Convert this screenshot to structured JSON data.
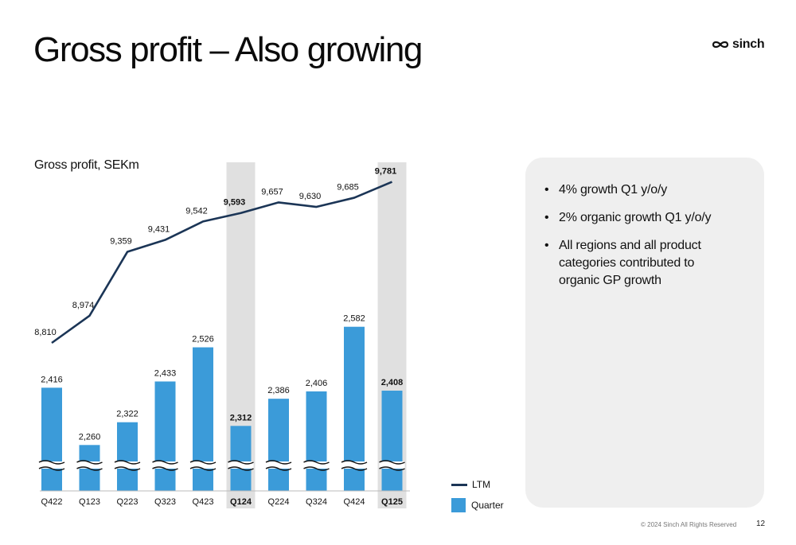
{
  "slide": {
    "title": "Gross profit – Also growing",
    "logo_text": "sinch",
    "footer": "© 2024 Sinch All Rights Reserved",
    "page_number": "12"
  },
  "chart_data": {
    "type": "bar+line",
    "title": "Gross profit, SEKm",
    "categories": [
      "Q422",
      "Q123",
      "Q223",
      "Q323",
      "Q423",
      "Q124",
      "Q224",
      "Q324",
      "Q424",
      "Q125"
    ],
    "highlighted_categories": [
      "Q124",
      "Q125"
    ],
    "axis_break": true,
    "series": [
      {
        "name": "Quarter",
        "type": "bar",
        "color": "#3b9bd9",
        "values": [
          2416,
          2260,
          2322,
          2433,
          2526,
          2312,
          2386,
          2406,
          2582,
          2408
        ],
        "labels": [
          "2,416",
          "2,260",
          "2,322",
          "2,433",
          "2,526",
          "2,312",
          "2,386",
          "2,406",
          "2,582",
          "2,408"
        ]
      },
      {
        "name": "LTM",
        "type": "line",
        "color": "#1b3556",
        "values": [
          8810,
          8974,
          9359,
          9431,
          9542,
          9593,
          9657,
          9630,
          9685,
          9781
        ],
        "labels": [
          "8,810",
          "8,974",
          "9,359",
          "9,431",
          "9,542",
          "9,593",
          "9,657",
          "9,630",
          "9,685",
          "9,781"
        ]
      }
    ],
    "legend": [
      "LTM",
      "Quarter"
    ],
    "legend_position": "bottom-right",
    "grid": false,
    "highlight_color": "#e0e0e0"
  },
  "panel": {
    "bullets": [
      "4% growth Q1 y/o/y",
      "2% organic growth Q1 y/o/y",
      "All regions and all product categories contributed to organic GP growth"
    ]
  }
}
